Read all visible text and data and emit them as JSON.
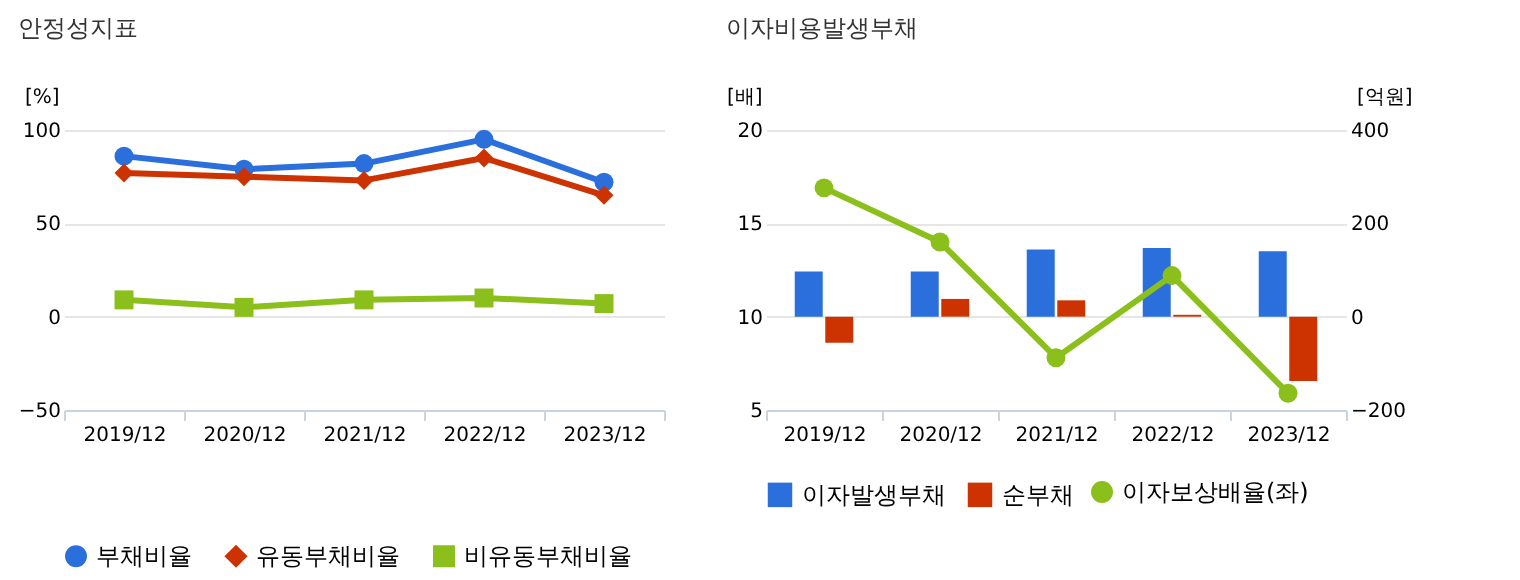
{
  "chart_data": [
    {
      "type": "line",
      "title": "안정성지표",
      "ylabel": "[%]",
      "categories": [
        "2019/12",
        "2020/12",
        "2021/12",
        "2022/12",
        "2023/12"
      ],
      "ylim": [
        -50,
        100
      ],
      "yticks": [
        -50,
        0,
        50,
        100
      ],
      "grid": "y",
      "legend": "bottom",
      "series": [
        {
          "name": "부채비율",
          "color": "#2a6fdc",
          "marker": "circle",
          "values": [
            86,
            79,
            82,
            95,
            72
          ]
        },
        {
          "name": "유동부채비율",
          "color": "#cc3300",
          "marker": "diamond",
          "values": [
            77,
            75,
            73,
            85,
            65
          ]
        },
        {
          "name": "비유동부채비율",
          "color": "#8bbf1c",
          "marker": "square",
          "values": [
            9,
            5,
            9,
            10,
            7
          ]
        }
      ]
    },
    {
      "type": "bar",
      "title": "이자비용발생부채",
      "ylabel": "[배]",
      "y2label": "[억원]",
      "categories": [
        "2019/12",
        "2020/12",
        "2021/12",
        "2022/12",
        "2023/12"
      ],
      "ylim": [
        5,
        20
      ],
      "yticks": [
        5,
        10,
        15,
        20
      ],
      "y2lim": [
        -200,
        400
      ],
      "y2ticks": [
        -200,
        0,
        200,
        400
      ],
      "grid": "y",
      "legend": "bottom",
      "series": [
        {
          "name": "이자발생부채",
          "color": "#2a6fdc",
          "axis": "y2",
          "values": [
            97,
            97,
            144,
            147,
            140
          ]
        },
        {
          "name": "순부채",
          "color": "#cc3300",
          "axis": "y2",
          "values": [
            -56,
            38,
            35,
            4,
            -138
          ]
        },
        {
          "name": "이자보상배율(좌)",
          "type": "line",
          "color": "#8bbf1c",
          "marker": "circle",
          "axis": "y",
          "values": [
            16.9,
            14.0,
            7.8,
            12.2,
            5.9
          ]
        }
      ]
    }
  ]
}
